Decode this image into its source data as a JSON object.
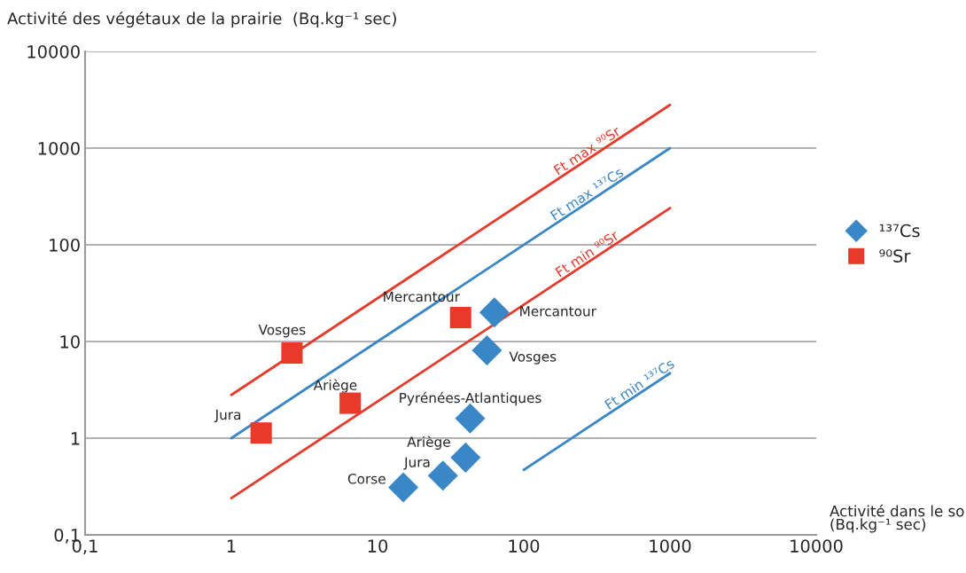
{
  "chart_data": {
    "type": "scatter",
    "log": "xy",
    "ylabel": "Activité des végétaux de la prairie  (Bq.kg⁻¹ sec)",
    "xlabel": "Activité dans le sol\n(Bq.kg⁻¹ sec)",
    "xlim": [
      0.1,
      10000
    ],
    "ylim": [
      0.1,
      10000
    ],
    "xticks": [
      {
        "value": 0.1,
        "label": "0,1"
      },
      1,
      10,
      100,
      1000,
      10000
    ],
    "yticks": [
      {
        "value": 0.1,
        "label": "0,1"
      },
      1,
      10,
      100,
      1000,
      10000
    ],
    "grid": "y",
    "legend": "right",
    "series": [
      {
        "type": "line",
        "name": "Ft max ⁹⁰Sr",
        "color": "#e8392a",
        "x": [
          1,
          1000
        ],
        "values": [
          2.8,
          2800
        ]
      },
      {
        "type": "line",
        "name": "Ft max ¹³⁷Cs",
        "color": "#3a87c8",
        "x": [
          1,
          1000
        ],
        "values": [
          1,
          1000
        ]
      },
      {
        "type": "line",
        "name": "Ft min ⁹⁰Sr",
        "color": "#e8392a",
        "x": [
          1,
          1000
        ],
        "values": [
          0.24,
          240
        ]
      },
      {
        "type": "line",
        "name": "Ft min ¹³⁷Cs",
        "color": "#3a87c8",
        "x": [
          100,
          1000
        ],
        "values": [
          0.47,
          4.7
        ]
      },
      {
        "name": "¹³⁷Cs",
        "color": "#3a87c8",
        "marker": "diamond",
        "x": [
          63,
          56,
          43,
          40,
          28,
          15
        ],
        "values": [
          20,
          8.1,
          1.6,
          0.63,
          0.41,
          0.31
        ]
      },
      {
        "name": "⁹⁰Sr",
        "color": "#e8392a",
        "marker": "square",
        "x": [
          1.6,
          2.6,
          6.5,
          37
        ],
        "values": [
          1.13,
          7.6,
          2.3,
          17.7
        ]
      }
    ],
    "annotations": [
      {
        "text": "Mercantour",
        "x": 63,
        "y": 20
      },
      {
        "text": "Vosges",
        "x": 56,
        "y": 8.1
      },
      {
        "text": "Pyrénées-Atlantiques",
        "x": 43,
        "y": 1.6
      },
      {
        "text": "Ariège",
        "x": 40,
        "y": 0.63
      },
      {
        "text": "Jura",
        "x": 28,
        "y": 0.41
      },
      {
        "text": "Corse",
        "x": 15,
        "y": 0.31
      },
      {
        "text": "Jura",
        "x": 1.6,
        "y": 1.13
      },
      {
        "text": "Vosges",
        "x": 2.6,
        "y": 7.6
      },
      {
        "text": "Ariège",
        "x": 6.5,
        "y": 2.3
      },
      {
        "text": "Mercantour",
        "x": 37,
        "y": 17.7
      }
    ]
  }
}
